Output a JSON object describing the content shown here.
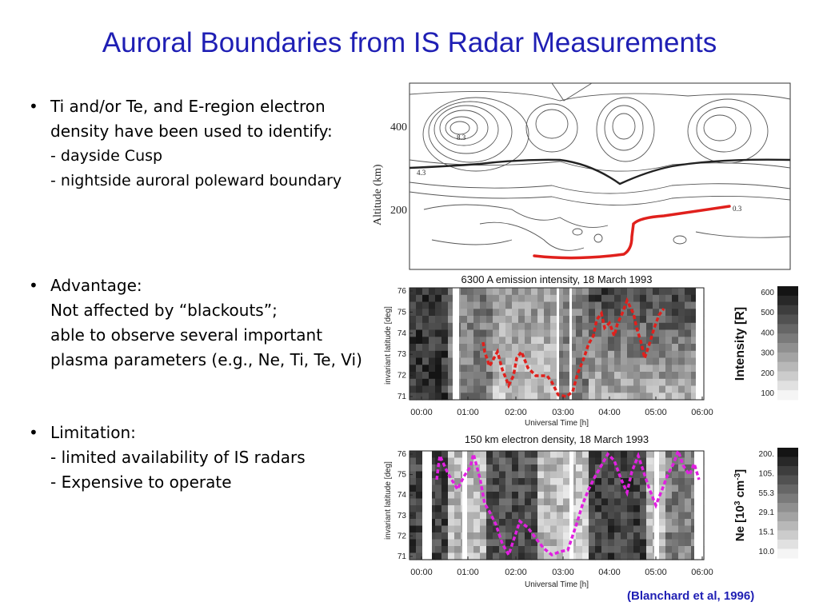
{
  "slide": {
    "title": "Auroral Boundaries from IS Radar Measurements",
    "citation": "(Blanchard et al, 1996)",
    "bullets": [
      {
        "main": "Ti and/or Te, and E-region electron density have been used to identify:",
        "subs": [
          "- dayside Cusp",
          "- nightside auroral poleward boundary"
        ]
      },
      {
        "main": "Advantage:",
        "subs": [
          "Not affected by “blackouts”;",
          "able to observe several important plasma parameters (e.g., Ne, Ti, Te, Vi)"
        ]
      },
      {
        "main": "Limitation:",
        "subs": [
          "- limited availability of IS radars",
          "- Expensive to operate"
        ]
      }
    ]
  },
  "contour_plot": {
    "ylabel": "Altitude (km)",
    "yticks": [
      "400",
      "200"
    ],
    "labels": [
      "8.3",
      "4.3",
      "0.3"
    ],
    "boundary_color": "#e0201c"
  },
  "panel_top": {
    "title": "6300 A emission intensity, 18 March 1993",
    "ylabel": "invariant latitude [deg]",
    "xlabel": "Universal Time [h]",
    "xticks": [
      "00:00",
      "01:00",
      "02:00",
      "03:00",
      "04:00",
      "05:00",
      "06:00"
    ],
    "yticks": [
      "76",
      "75",
      "74",
      "73",
      "72",
      "71"
    ],
    "colorbar_label": "Intensity [R]",
    "colorbar_ticks": [
      "600",
      "500",
      "400",
      "300",
      "200",
      "100"
    ],
    "boundary_color": "#e0201c"
  },
  "panel_bottom": {
    "title": "150 km electron density, 18 March 1993",
    "ylabel": "invariant latitude [deg]",
    "xlabel": "Universal Time [h]",
    "xticks": [
      "00:00",
      "01:00",
      "02:00",
      "03:00",
      "04:00",
      "05:00",
      "06:00"
    ],
    "yticks": [
      "76",
      "75",
      "74",
      "73",
      "72",
      "71"
    ],
    "colorbar_label_main": "Ne [10",
    "colorbar_label_sup1": "3",
    "colorbar_label_mid": " cm",
    "colorbar_label_sup2": "-3",
    "colorbar_label_end": "]",
    "colorbar_ticks": [
      "200.",
      "105.",
      "55.3",
      "29.1",
      "15.1",
      "10.0"
    ],
    "boundary_color": "#e020e0"
  }
}
